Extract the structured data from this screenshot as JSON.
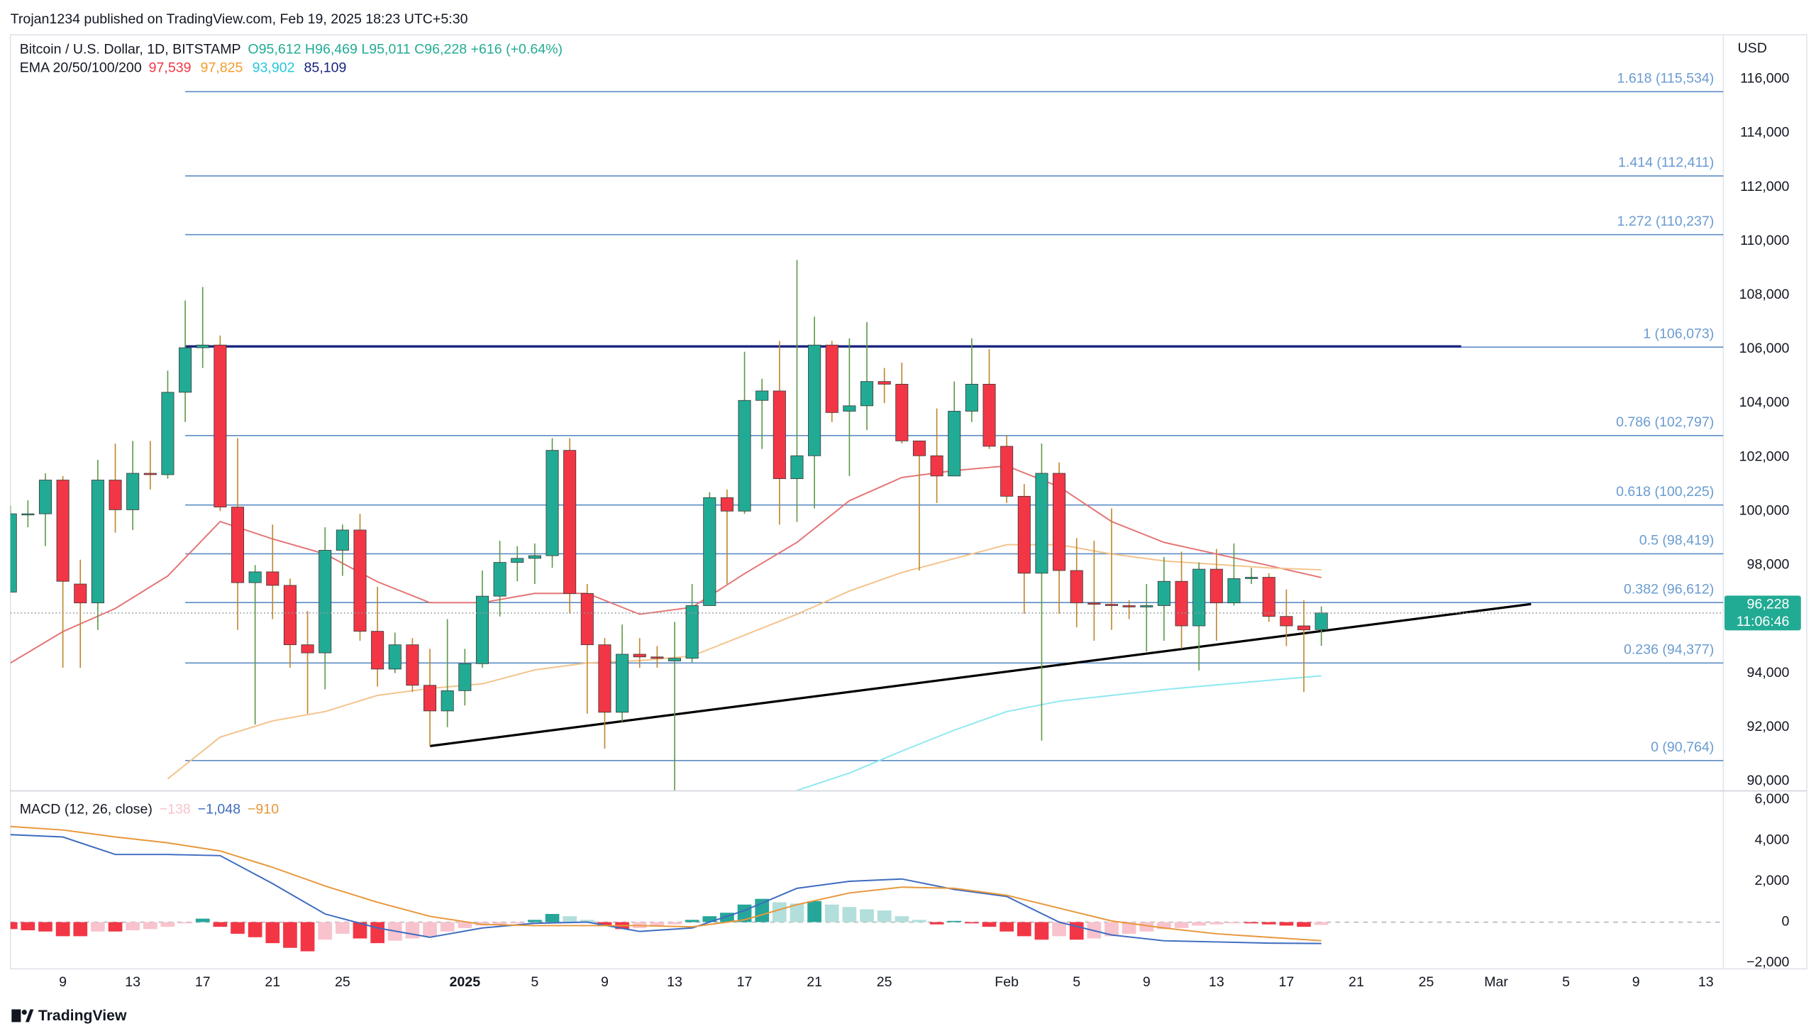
{
  "header": {
    "publisher": "Trojan1234 published on TradingView.com, Feb 19, 2025 18:23 UTC+5:30",
    "currency": "USD",
    "logo": "TradingView"
  },
  "chart_data": [
    {
      "type": "candlestick",
      "title": "Bitcoin / U.S. Dollar, 1D, BITSTAMP",
      "ohlc_label": "O95,612  H96,469  L95,011  C96,228  +616 (+0.64%)",
      "up_color": "#22ab94",
      "down_color": "#f23645",
      "wick_up_color": "#5f9a4a",
      "wick_down_color": "#c0862e",
      "x": [
        "2024-12-06",
        "2024-12-07",
        "2024-12-08",
        "2024-12-09",
        "2024-12-10",
        "2024-12-11",
        "2024-12-12",
        "2024-12-13",
        "2024-12-14",
        "2024-12-15",
        "2024-12-16",
        "2024-12-17",
        "2024-12-18",
        "2024-12-19",
        "2024-12-20",
        "2024-12-21",
        "2024-12-22",
        "2024-12-23",
        "2024-12-24",
        "2024-12-25",
        "2024-12-26",
        "2024-12-27",
        "2024-12-28",
        "2024-12-29",
        "2024-12-30",
        "2024-12-31",
        "2025-01-01",
        "2025-01-02",
        "2025-01-03",
        "2025-01-04",
        "2025-01-05",
        "2025-01-06",
        "2025-01-07",
        "2025-01-08",
        "2025-01-09",
        "2025-01-10",
        "2025-01-11",
        "2025-01-12",
        "2025-01-13",
        "2025-01-14",
        "2025-01-15",
        "2025-01-16",
        "2025-01-17",
        "2025-01-18",
        "2025-01-19",
        "2025-01-20",
        "2025-01-21",
        "2025-01-22",
        "2025-01-23",
        "2025-01-24",
        "2025-01-25",
        "2025-01-26",
        "2025-01-27",
        "2025-01-28",
        "2025-01-29",
        "2025-01-30",
        "2025-01-31",
        "2025-02-01",
        "2025-02-02",
        "2025-02-03",
        "2025-02-04",
        "2025-02-05",
        "2025-02-06",
        "2025-02-07",
        "2025-02-08",
        "2025-02-09",
        "2025-02-10",
        "2025-02-11",
        "2025-02-12",
        "2025-02-13",
        "2025-02-14",
        "2025-02-15",
        "2025-02-16",
        "2025-02-17",
        "2025-02-18",
        "2025-02-19"
      ],
      "open": [
        97000,
        99900,
        99900,
        101150,
        97300,
        96600,
        101150,
        100050,
        101400,
        101350,
        104400,
        106050,
        106150,
        100150,
        97350,
        97750,
        97250,
        95050,
        94750,
        98550,
        99300,
        95550,
        94150,
        95050,
        93550,
        92600,
        93350,
        94350,
        96850,
        98100,
        98250,
        98350,
        102250,
        96950,
        95050,
        92550,
        94700,
        94600,
        94450,
        94550,
        96500,
        100500,
        100000,
        104100,
        104450,
        101200,
        102050,
        106150,
        103700,
        103900,
        104800,
        104700,
        102600,
        102050,
        101300,
        103700,
        104700,
        102400,
        100550,
        97700,
        101400,
        97800,
        96600,
        96550,
        96500,
        96450,
        96500,
        97400,
        95750,
        97850,
        96600,
        97500,
        97550,
        96100,
        95750,
        95612
      ],
      "high": [
        100200,
        100400,
        101400,
        101300,
        98200,
        101900,
        102500,
        102600,
        102600,
        105200,
        107800,
        108300,
        106500,
        102700,
        98000,
        99500,
        97500,
        96300,
        99400,
        99500,
        99900,
        97200,
        95500,
        95300,
        94900,
        96000,
        94900,
        97800,
        98900,
        98700,
        98800,
        102700,
        102700,
        97300,
        95300,
        95800,
        95300,
        95000,
        95900,
        97300,
        100700,
        100800,
        105900,
        104900,
        106300,
        109300,
        107200,
        106300,
        106400,
        107000,
        105300,
        105500,
        102600,
        103800,
        104800,
        106400,
        106000,
        102800,
        101000,
        102500,
        101800,
        99000,
        98900,
        100100,
        96700,
        97300,
        98300,
        98500,
        98100,
        98600,
        98800,
        97900,
        97700,
        97100,
        96700,
        96469
      ],
      "low": [
        97000,
        99400,
        98700,
        94200,
        94200,
        95600,
        99200,
        99300,
        100800,
        101200,
        103300,
        105300,
        100000,
        95600,
        92100,
        96000,
        94200,
        92500,
        93400,
        97600,
        95200,
        93500,
        94000,
        93300,
        91300,
        92000,
        92800,
        94200,
        96100,
        97400,
        97300,
        97900,
        96200,
        92500,
        91200,
        92200,
        94200,
        94200,
        89260,
        94400,
        96500,
        97300,
        99900,
        102300,
        99500,
        99600,
        100100,
        103300,
        101300,
        103000,
        104000,
        102500,
        97800,
        100300,
        101300,
        103300,
        102300,
        100300,
        96200,
        91500,
        96200,
        95700,
        95200,
        95600,
        96000,
        94800,
        95200,
        94900,
        94100,
        95200,
        96500,
        97300,
        95900,
        95000,
        93300,
        95011
      ],
      "close": [
        99900,
        99900,
        101150,
        97400,
        96600,
        101150,
        100050,
        101400,
        101350,
        104400,
        106050,
        106150,
        100150,
        97350,
        97750,
        97250,
        95050,
        94750,
        98550,
        99300,
        95550,
        94150,
        95050,
        93550,
        92600,
        93350,
        94350,
        96850,
        98100,
        98250,
        98350,
        102250,
        96950,
        95050,
        92550,
        94700,
        94600,
        94550,
        94550,
        96500,
        100500,
        100000,
        104100,
        104450,
        101200,
        102050,
        106150,
        103650,
        103900,
        104800,
        104700,
        102600,
        102050,
        101300,
        103700,
        104700,
        102400,
        100550,
        97700,
        101400,
        97800,
        96600,
        96550,
        96500,
        96450,
        96500,
        97400,
        95750,
        97850,
        96600,
        97500,
        97550,
        96100,
        95750,
        95600,
        96228
      ],
      "xlim": [
        "2024-12-06",
        "2025-03-14"
      ],
      "xticks": [
        {
          "value": "2024-12-09",
          "label": "9"
        },
        {
          "value": "2024-12-13",
          "label": "13"
        },
        {
          "value": "2024-12-17",
          "label": "17"
        },
        {
          "value": "2024-12-21",
          "label": "21"
        },
        {
          "value": "2024-12-25",
          "label": "25"
        },
        {
          "value": "2025-01-01",
          "label": "2025",
          "bold": true
        },
        {
          "value": "2025-01-05",
          "label": "5"
        },
        {
          "value": "2025-01-09",
          "label": "9"
        },
        {
          "value": "2025-01-13",
          "label": "13"
        },
        {
          "value": "2025-01-17",
          "label": "17"
        },
        {
          "value": "2025-01-21",
          "label": "21"
        },
        {
          "value": "2025-01-25",
          "label": "25"
        },
        {
          "value": "2025-02-01",
          "label": "Feb"
        },
        {
          "value": "2025-02-05",
          "label": "5"
        },
        {
          "value": "2025-02-09",
          "label": "9"
        },
        {
          "value": "2025-02-13",
          "label": "13"
        },
        {
          "value": "2025-02-17",
          "label": "17"
        },
        {
          "value": "2025-02-21",
          "label": "21"
        },
        {
          "value": "2025-02-25",
          "label": "25"
        },
        {
          "value": "2025-03-01",
          "label": "Mar"
        },
        {
          "value": "2025-03-05",
          "label": "5"
        },
        {
          "value": "2025-03-09",
          "label": "9"
        },
        {
          "value": "2025-03-13",
          "label": "13"
        }
      ],
      "ylim": [
        89660,
        117640
      ],
      "yticks": [
        {
          "value": 90000,
          "label": "90,000"
        },
        {
          "value": 92000,
          "label": "92,000"
        },
        {
          "value": 94000,
          "label": "94,000"
        },
        {
          "value": 96000,
          "label": "96,000"
        },
        {
          "value": 98000,
          "label": "98,000"
        },
        {
          "value": 100000,
          "label": "100,000"
        },
        {
          "value": 102000,
          "label": "102,000"
        },
        {
          "value": 104000,
          "label": "104,000"
        },
        {
          "value": 106000,
          "label": "106,000"
        },
        {
          "value": 108000,
          "label": "108,000"
        },
        {
          "value": 110000,
          "label": "110,000"
        },
        {
          "value": 112000,
          "label": "112,000"
        },
        {
          "value": 114000,
          "label": "114,000"
        },
        {
          "value": 116000,
          "label": "116,000"
        }
      ],
      "grid": false,
      "ema": {
        "label": "EMA 20/50/100/200",
        "series": [
          {
            "color": "#f23645",
            "line_color": "#e57373",
            "value_label": "97,539",
            "x": [
              "2024-12-06",
              "2024-12-09",
              "2024-12-12",
              "2024-12-15",
              "2024-12-18",
              "2024-12-21",
              "2024-12-24",
              "2024-12-27",
              "2024-12-30",
              "2025-01-02",
              "2025-01-05",
              "2025-01-08",
              "2025-01-11",
              "2025-01-14",
              "2025-01-17",
              "2025-01-20",
              "2025-01-23",
              "2025-01-26",
              "2025-01-29",
              "2025-02-01",
              "2025-02-04",
              "2025-02-07",
              "2025-02-10",
              "2025-02-13",
              "2025-02-16",
              "2025-02-19"
            ],
            "values": [
              94378,
              95537,
              96395,
              97597,
              99614,
              98970,
              98412,
              97382,
              96610,
              96610,
              96953,
              96953,
              96180,
              96438,
              97683,
              98842,
              100387,
              101245,
              101503,
              101674,
              100902,
              99614,
              98842,
              98412,
              97983,
              97539
            ]
          },
          {
            "color": "#f59c2b",
            "line_color": "#f3c38a",
            "value_label": "97,825",
            "x": [
              "2024-12-15",
              "2024-12-18",
              "2024-12-21",
              "2024-12-24",
              "2024-12-27",
              "2024-12-30",
              "2025-01-02",
              "2025-01-05",
              "2025-01-08",
              "2025-01-11",
              "2025-01-14",
              "2025-01-17",
              "2025-01-20",
              "2025-01-23",
              "2025-01-26",
              "2025-01-29",
              "2025-02-01",
              "2025-02-04",
              "2025-02-07",
              "2025-02-10",
              "2025-02-13",
              "2025-02-16",
              "2025-02-19"
            ],
            "values": [
              90086,
              91631,
              92232,
              92575,
              93176,
              93434,
              93605,
              94120,
              94378,
              94464,
              94635,
              95408,
              96180,
              97039,
              97726,
              98241,
              98756,
              98756,
              98412,
              98155,
              98026,
              97897,
              97825
            ]
          },
          {
            "color": "#26c6da",
            "line_color": "#8ee8f0",
            "value_label": "93,902",
            "x": [
              "2025-01-20",
              "2025-01-23",
              "2025-01-26",
              "2025-01-29",
              "2025-02-01",
              "2025-02-04",
              "2025-02-07",
              "2025-02-10",
              "2025-02-13",
              "2025-02-16",
              "2025-02-19"
            ],
            "values": [
              89657,
              90300,
              91116,
              91888,
              92575,
              92961,
              93176,
              93391,
              93562,
              93734,
              93902
            ]
          },
          {
            "color": "#1a237e",
            "value_label": "85,109"
          }
        ]
      },
      "fib": {
        "start": "2024-12-16",
        "color": "#5d8cc4",
        "label_color": "#6a9bd1",
        "levels": [
          {
            "value": 115534,
            "label": "1.618 (115,534)"
          },
          {
            "value": 112411,
            "label": "1.414 (112,411)"
          },
          {
            "value": 110237,
            "label": "1.272 (110,237)"
          },
          {
            "value": 106073,
            "label": "1 (106,073)"
          },
          {
            "value": 102797,
            "label": "0.786 (102,797)"
          },
          {
            "value": 100225,
            "label": "0.618 (100,225)"
          },
          {
            "value": 98419,
            "label": "0.5 (98,419)"
          },
          {
            "value": 96612,
            "label": "0.382 (96,612)"
          },
          {
            "value": 94377,
            "label": "0.236 (94,377)"
          },
          {
            "value": 90764,
            "label": "0 (90,764)"
          }
        ]
      },
      "trendlines": [
        {
          "color": "#000000",
          "points": [
            [
              "2024-12-30",
              91300
            ],
            [
              "2025-03-03",
              96560
            ]
          ]
        },
        {
          "color": "#1a237e",
          "points": [
            [
              "2024-12-16",
              106100
            ],
            [
              "2025-02-27",
              106100
            ]
          ]
        }
      ],
      "last_price": 96228,
      "last_price_label": "96,228",
      "countdown": "11:06:46"
    },
    {
      "type": "macd",
      "title": "MACD (12, 26, close)",
      "histogram": {
        "value_label": "−138",
        "colors": {
          "rising_above": "#26a69a",
          "falling_above": "#b2dfdb",
          "falling_below": "#f23645",
          "rising_below": "#f8c3cd"
        },
        "values": [
          -340,
          -400,
          -460,
          -690,
          -690,
          -460,
          -460,
          -400,
          -340,
          -230,
          -60,
          170,
          -230,
          -570,
          -740,
          -1030,
          -1260,
          -1430,
          -860,
          -570,
          -800,
          -1030,
          -910,
          -800,
          -690,
          -460,
          -290,
          -170,
          -110,
          -60,
          110,
          400,
          290,
          110,
          -170,
          -340,
          -290,
          -170,
          -110,
          110,
          290,
          460,
          860,
          1140,
          970,
          910,
          1030,
          860,
          740,
          630,
          570,
          290,
          110,
          -110,
          60,
          -60,
          -230,
          -460,
          -690,
          -860,
          -690,
          -860,
          -800,
          -690,
          -570,
          -460,
          -340,
          -290,
          -170,
          -110,
          -60,
          -60,
          -110,
          -170,
          -230,
          -138
        ]
      },
      "macd": {
        "color": "#3e6bbf",
        "value_label": "−1,048",
        "x": [
          "2024-12-06",
          "2024-12-09",
          "2024-12-12",
          "2024-12-15",
          "2024-12-18",
          "2024-12-21",
          "2024-12-24",
          "2024-12-27",
          "2024-12-30",
          "2025-01-02",
          "2025-01-05",
          "2025-01-08",
          "2025-01-11",
          "2025-01-14",
          "2025-01-17",
          "2025-01-20",
          "2025-01-23",
          "2025-01-26",
          "2025-01-29",
          "2025-02-01",
          "2025-02-04",
          "2025-02-07",
          "2025-02-10",
          "2025-02-13",
          "2025-02-16",
          "2025-02-19"
        ],
        "values": [
          4286,
          4171,
          3314,
          3314,
          3257,
          1886,
          400,
          -286,
          -743,
          -286,
          -57,
          0,
          -457,
          -286,
          571,
          1657,
          2000,
          2114,
          1600,
          1257,
          0,
          -629,
          -914,
          -971,
          -1029,
          -1048
        ]
      },
      "signal": {
        "color": "#e8973a",
        "value_label": "−910",
        "x": [
          "2024-12-06",
          "2024-12-09",
          "2024-12-12",
          "2024-12-15",
          "2024-12-18",
          "2024-12-21",
          "2024-12-24",
          "2024-12-27",
          "2024-12-30",
          "2025-01-02",
          "2025-01-05",
          "2025-01-08",
          "2025-01-11",
          "2025-01-14",
          "2025-01-17",
          "2025-01-20",
          "2025-01-23",
          "2025-01-26",
          "2025-01-29",
          "2025-02-01",
          "2025-02-04",
          "2025-02-07",
          "2025-02-10",
          "2025-02-13",
          "2025-02-16",
          "2025-02-19"
        ],
        "values": [
          4686,
          4514,
          4171,
          3886,
          3486,
          2686,
          1771,
          971,
          286,
          -114,
          -171,
          -171,
          -171,
          -229,
          114,
          857,
          1429,
          1714,
          1657,
          1314,
          686,
          57,
          -286,
          -571,
          -743,
          -910
        ]
      },
      "ylim": [
        -2286,
        6400
      ],
      "yticks": [
        {
          "value": 6000,
          "label": "6,000"
        },
        {
          "value": 4000,
          "label": "4,000"
        },
        {
          "value": 2000,
          "label": "2,000"
        },
        0,
        {
          "value": -2000,
          "label": "−2,000"
        }
      ],
      "zero_line": true
    }
  ]
}
